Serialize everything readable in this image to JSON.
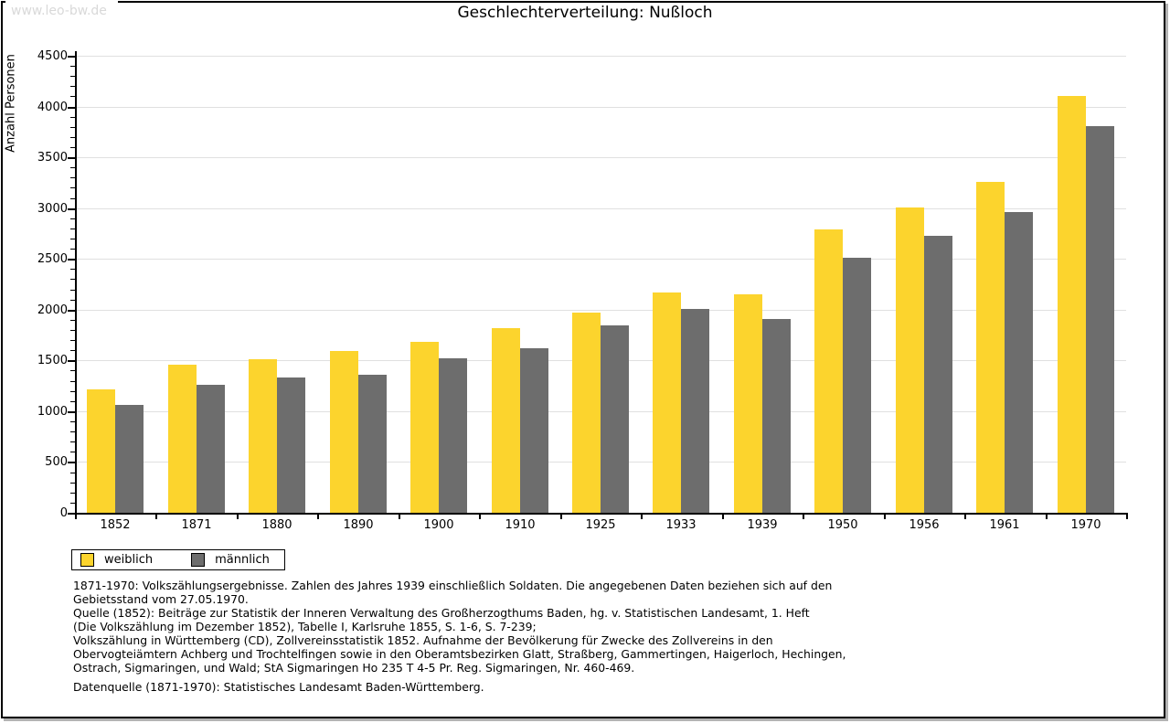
{
  "watermark": "www.leo-bw.de",
  "title": "Geschlechterverteilung: Nußloch",
  "chart_data": {
    "type": "bar",
    "title": "Geschlechterverteilung: Nußloch",
    "categories": [
      "1852",
      "1871",
      "1880",
      "1890",
      "1900",
      "1910",
      "1925",
      "1933",
      "1939",
      "1950",
      "1956",
      "1961",
      "1970"
    ],
    "series": [
      {
        "name": "weiblich",
        "color": "#fcd42d",
        "values": [
          1215,
          1460,
          1510,
          1595,
          1680,
          1815,
          1970,
          2170,
          2150,
          2790,
          3010,
          3260,
          4100
        ]
      },
      {
        "name": "männlich",
        "color": "#6d6d6d",
        "values": [
          1060,
          1260,
          1330,
          1360,
          1525,
          1620,
          1845,
          2005,
          1905,
          2510,
          2725,
          2960,
          3805
        ]
      }
    ],
    "xlabel": "",
    "ylabel": "Anzahl Personen",
    "ylim": [
      0,
      4500
    ],
    "ytick_step": 500,
    "yminor_step": 100,
    "grid": true,
    "gridline_color": "#e0e0e0",
    "legend_position": "bottom-left"
  },
  "footnotes": {
    "lines": [
      "1871-1970: Volkszählungsergebnisse. Zahlen des Jahres 1939 einschließlich Soldaten. Die angegebenen Daten beziehen sich auf den",
      "Gebietsstand vom 27.05.1970.",
      "Quelle (1852): Beiträge zur Statistik der Inneren Verwaltung des Großherzogthums Baden, hg. v. Statistischen Landesamt, 1. Heft",
      "(Die Volkszählung im Dezember 1852), Tabelle I, Karlsruhe 1855, S. 1-6, S. 7-239;",
      "Volkszählung in Württemberg (CD), Zollvereinsstatistik 1852. Aufnahme der Bevölkerung für Zwecke des Zollvereins in den",
      "Obervogteiämtern Achberg und Trochtelfingen sowie in den Oberamtsbezirken Glatt, Straßberg, Gammertingen, Haigerloch, Hechingen,",
      "Ostrach, Sigmaringen, und Wald; StA Sigmaringen Ho 235 T 4-5 Pr. Reg. Sigmaringen, Nr. 460-469."
    ],
    "datasource": "Datenquelle (1871-1970): Statistisches Landesamt Baden-Württemberg."
  }
}
